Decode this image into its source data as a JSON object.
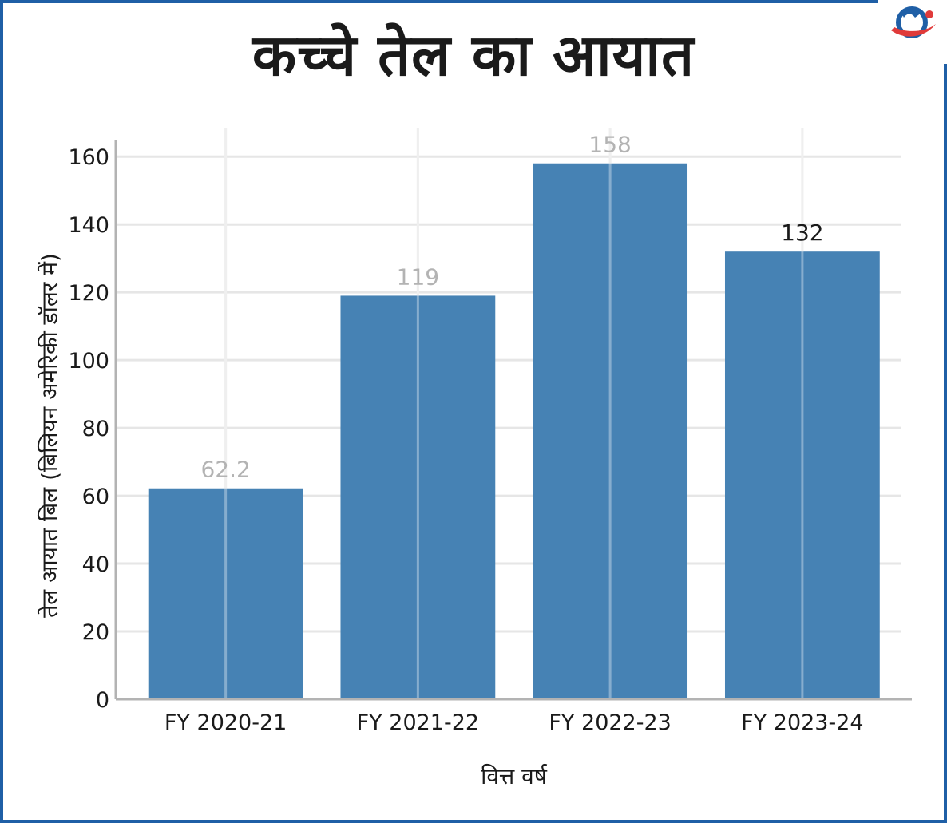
{
  "title": "कच्चे तेल का आयात",
  "colors": {
    "bar": "#4682b4",
    "border": "#1f5fa6",
    "grid": "#e6e6e6",
    "axis": "#b3b3b3",
    "value_label_muted": "#b3b3b3",
    "value_label_dark": "#1a1a1a",
    "logo_blue": "#1f5fa6",
    "logo_red": "#e03a3a"
  },
  "logo": {
    "icon": "globe-swoosh-logo-icon"
  },
  "chart_data": {
    "type": "bar",
    "title": "कच्चे तेल का आयात",
    "xlabel": "वित्त वर्ष",
    "ylabel": "तेल आयात बिल (बिलियन अमेरिकी डॉलर में)",
    "categories": [
      "FY 2020-21",
      "FY 2021-22",
      "FY 2022-23",
      "FY 2023-24"
    ],
    "values": [
      62.2,
      119,
      158,
      132
    ],
    "value_labels": [
      "62.2",
      "119",
      "158",
      "132"
    ],
    "ylim": [
      0,
      165
    ],
    "yticks": [
      0,
      20,
      40,
      60,
      80,
      100,
      120,
      140,
      160
    ],
    "ytick_labels": [
      "0",
      "20",
      "40",
      "60",
      "80",
      "100",
      "120",
      "140",
      "160"
    ],
    "grid": true,
    "legend": "none"
  }
}
